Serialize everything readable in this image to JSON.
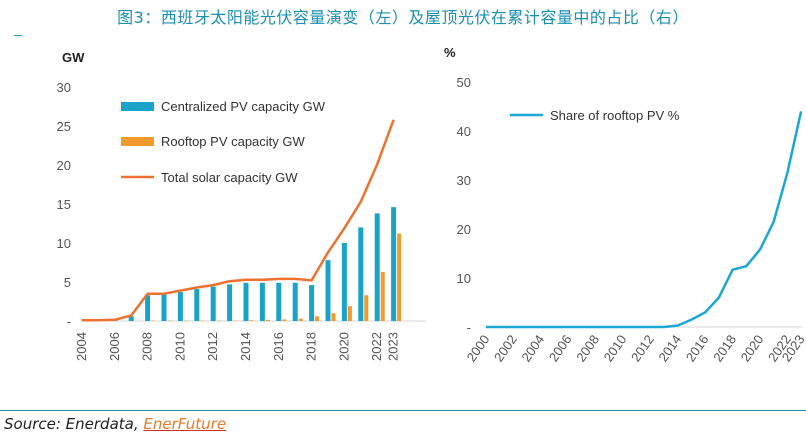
{
  "title": "图3：西班牙太阳能光伏容量演变（左）及屋顶光伏在累计容量中的占比（右）",
  "source": {
    "prefix": "Source: Enerdata, ",
    "link": "EnerFuture"
  },
  "colors": {
    "accent": "#1a8fb0",
    "centralized": "#1aa3c8",
    "rooftop": "#f39a2e",
    "total": "#ee7130",
    "share": "#1aa7d6"
  },
  "chart_data": [
    {
      "type": "bar",
      "unit_label": "GW",
      "ylim": [
        0,
        30
      ],
      "yticks": [
        0,
        5,
        10,
        15,
        20,
        25,
        30
      ],
      "ytick_labels": [
        "-",
        "5",
        "10",
        "15",
        "20",
        "25",
        "30"
      ],
      "x": [
        2004,
        2005,
        2006,
        2007,
        2008,
        2009,
        2010,
        2011,
        2012,
        2013,
        2014,
        2015,
        2016,
        2017,
        2018,
        2019,
        2020,
        2021,
        2022,
        2023
      ],
      "xtick_labels": [
        "2004",
        "2006",
        "2008",
        "2010",
        "2012",
        "2014",
        "2016",
        "2018",
        "2020",
        "2022",
        "2023"
      ],
      "legend_placement": "top-left",
      "series": [
        {
          "name": "Centralized PV capacity GW",
          "kind": "bar",
          "values": [
            0.0,
            0.05,
            0.1,
            0.6,
            3.3,
            3.4,
            3.7,
            4.1,
            4.4,
            4.7,
            4.9,
            4.9,
            4.9,
            4.9,
            4.6,
            7.8,
            10.0,
            12.0,
            13.8,
            14.6
          ]
        },
        {
          "name": "Rooftop PV capacity GW",
          "kind": "bar",
          "values": [
            0.0,
            0.0,
            0.0,
            0.0,
            0.05,
            0.05,
            0.05,
            0.05,
            0.05,
            0.05,
            0.1,
            0.15,
            0.2,
            0.3,
            0.6,
            1.0,
            1.9,
            3.3,
            6.3,
            11.2
          ]
        },
        {
          "name": "Total solar capacity GW",
          "kind": "line",
          "values": [
            0.1,
            0.1,
            0.15,
            0.7,
            3.5,
            3.5,
            3.9,
            4.3,
            4.6,
            5.1,
            5.3,
            5.3,
            5.4,
            5.4,
            5.2,
            8.8,
            11.9,
            15.3,
            20.1,
            25.8
          ]
        }
      ]
    },
    {
      "type": "line",
      "unit_label": "%",
      "ylim": [
        0,
        50
      ],
      "yticks": [
        0,
        10,
        20,
        30,
        40,
        50
      ],
      "ytick_labels": [
        "-",
        "10",
        "20",
        "30",
        "40",
        "50"
      ],
      "x": [
        2000,
        2001,
        2002,
        2003,
        2004,
        2005,
        2006,
        2007,
        2008,
        2009,
        2010,
        2011,
        2012,
        2013,
        2014,
        2015,
        2016,
        2017,
        2018,
        2019,
        2020,
        2021,
        2022,
        2023
      ],
      "xtick_labels": [
        "2000",
        "2002",
        "2004",
        "2006",
        "2008",
        "2010",
        "2012",
        "2014",
        "2016",
        "2018",
        "2020",
        "2022",
        "2023"
      ],
      "legend_placement": "top-left",
      "series": [
        {
          "name": "Share of rooftop PV %",
          "values": [
            0,
            0,
            0,
            0,
            0,
            0,
            0,
            0,
            0,
            0,
            0,
            0,
            0,
            0,
            0.3,
            1.5,
            3.0,
            6.0,
            11.7,
            12.4,
            15.8,
            21.5,
            31.5,
            44.0
          ]
        }
      ]
    }
  ]
}
